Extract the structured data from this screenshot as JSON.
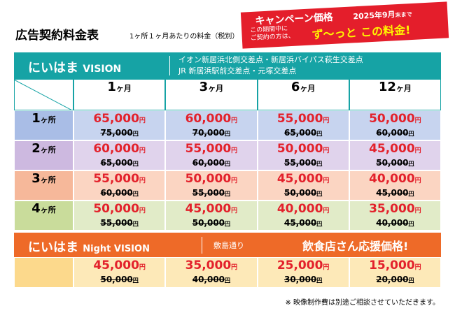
{
  "header": {
    "title": "広告契約料金表",
    "subtitle": "1ヶ所１ヶ月あたりの料金（税別）"
  },
  "campaign": {
    "title": "キャンペーン価格",
    "deadline_main": "2025年9月",
    "deadline_rest": "末まで",
    "line1": "この期間中に",
    "line2": "ご契約の方は、",
    "slogan": "ず〜っと この料金!"
  },
  "vision": {
    "logo": "にいはま",
    "logo_suffix": "VISION",
    "locations": [
      "イオン新居浜北側交差点・新居浜バイパス萩生交差点",
      "JR 新居浜駅前交差点・元塚交差点"
    ]
  },
  "table": {
    "currency": "円",
    "columns": [
      {
        "num": "1",
        "unit": "ヶ月"
      },
      {
        "num": "3",
        "unit": "ヶ月"
      },
      {
        "num": "6",
        "unit": "ヶ月"
      },
      {
        "num": "12",
        "unit": "ヶ月"
      }
    ],
    "rows": [
      {
        "num": "1",
        "unit": "ヶ所",
        "prices": [
          {
            "sale": "65,000",
            "regular": "75,000"
          },
          {
            "sale": "60,000",
            "regular": "70,000"
          },
          {
            "sale": "55,000",
            "regular": "65,000"
          },
          {
            "sale": "50,000",
            "regular": "60,000"
          }
        ]
      },
      {
        "num": "2",
        "unit": "ヶ所",
        "prices": [
          {
            "sale": "60,000",
            "regular": "65,000"
          },
          {
            "sale": "55,000",
            "regular": "60,000"
          },
          {
            "sale": "50,000",
            "regular": "55,000"
          },
          {
            "sale": "45,000",
            "regular": "50,000"
          }
        ]
      },
      {
        "num": "3",
        "unit": "ヶ所",
        "prices": [
          {
            "sale": "55,000",
            "regular": "60,000"
          },
          {
            "sale": "50,000",
            "regular": "55,000"
          },
          {
            "sale": "45,000",
            "regular": "50,000"
          },
          {
            "sale": "40,000",
            "regular": "45,000"
          }
        ]
      },
      {
        "num": "4",
        "unit": "ヶ所",
        "prices": [
          {
            "sale": "50,000",
            "regular": "55,000"
          },
          {
            "sale": "45,000",
            "regular": "50,000"
          },
          {
            "sale": "40,000",
            "regular": "45,000"
          },
          {
            "sale": "35,000",
            "regular": "40,000"
          }
        ]
      }
    ]
  },
  "night": {
    "logo": "にいはま",
    "logo_suffix": "Night VISION",
    "location": "敷島通り",
    "slogan": "飲食店さん応援価格!",
    "prices": [
      {
        "sale": "45,000",
        "regular": "50,000"
      },
      {
        "sale": "35,000",
        "regular": "40,000"
      },
      {
        "sale": "25,000",
        "regular": "30,000"
      },
      {
        "sale": "15,000",
        "regular": "20,000"
      }
    ]
  },
  "footnote": "※ 映像制作費は別途ご相談させていただきます。"
}
